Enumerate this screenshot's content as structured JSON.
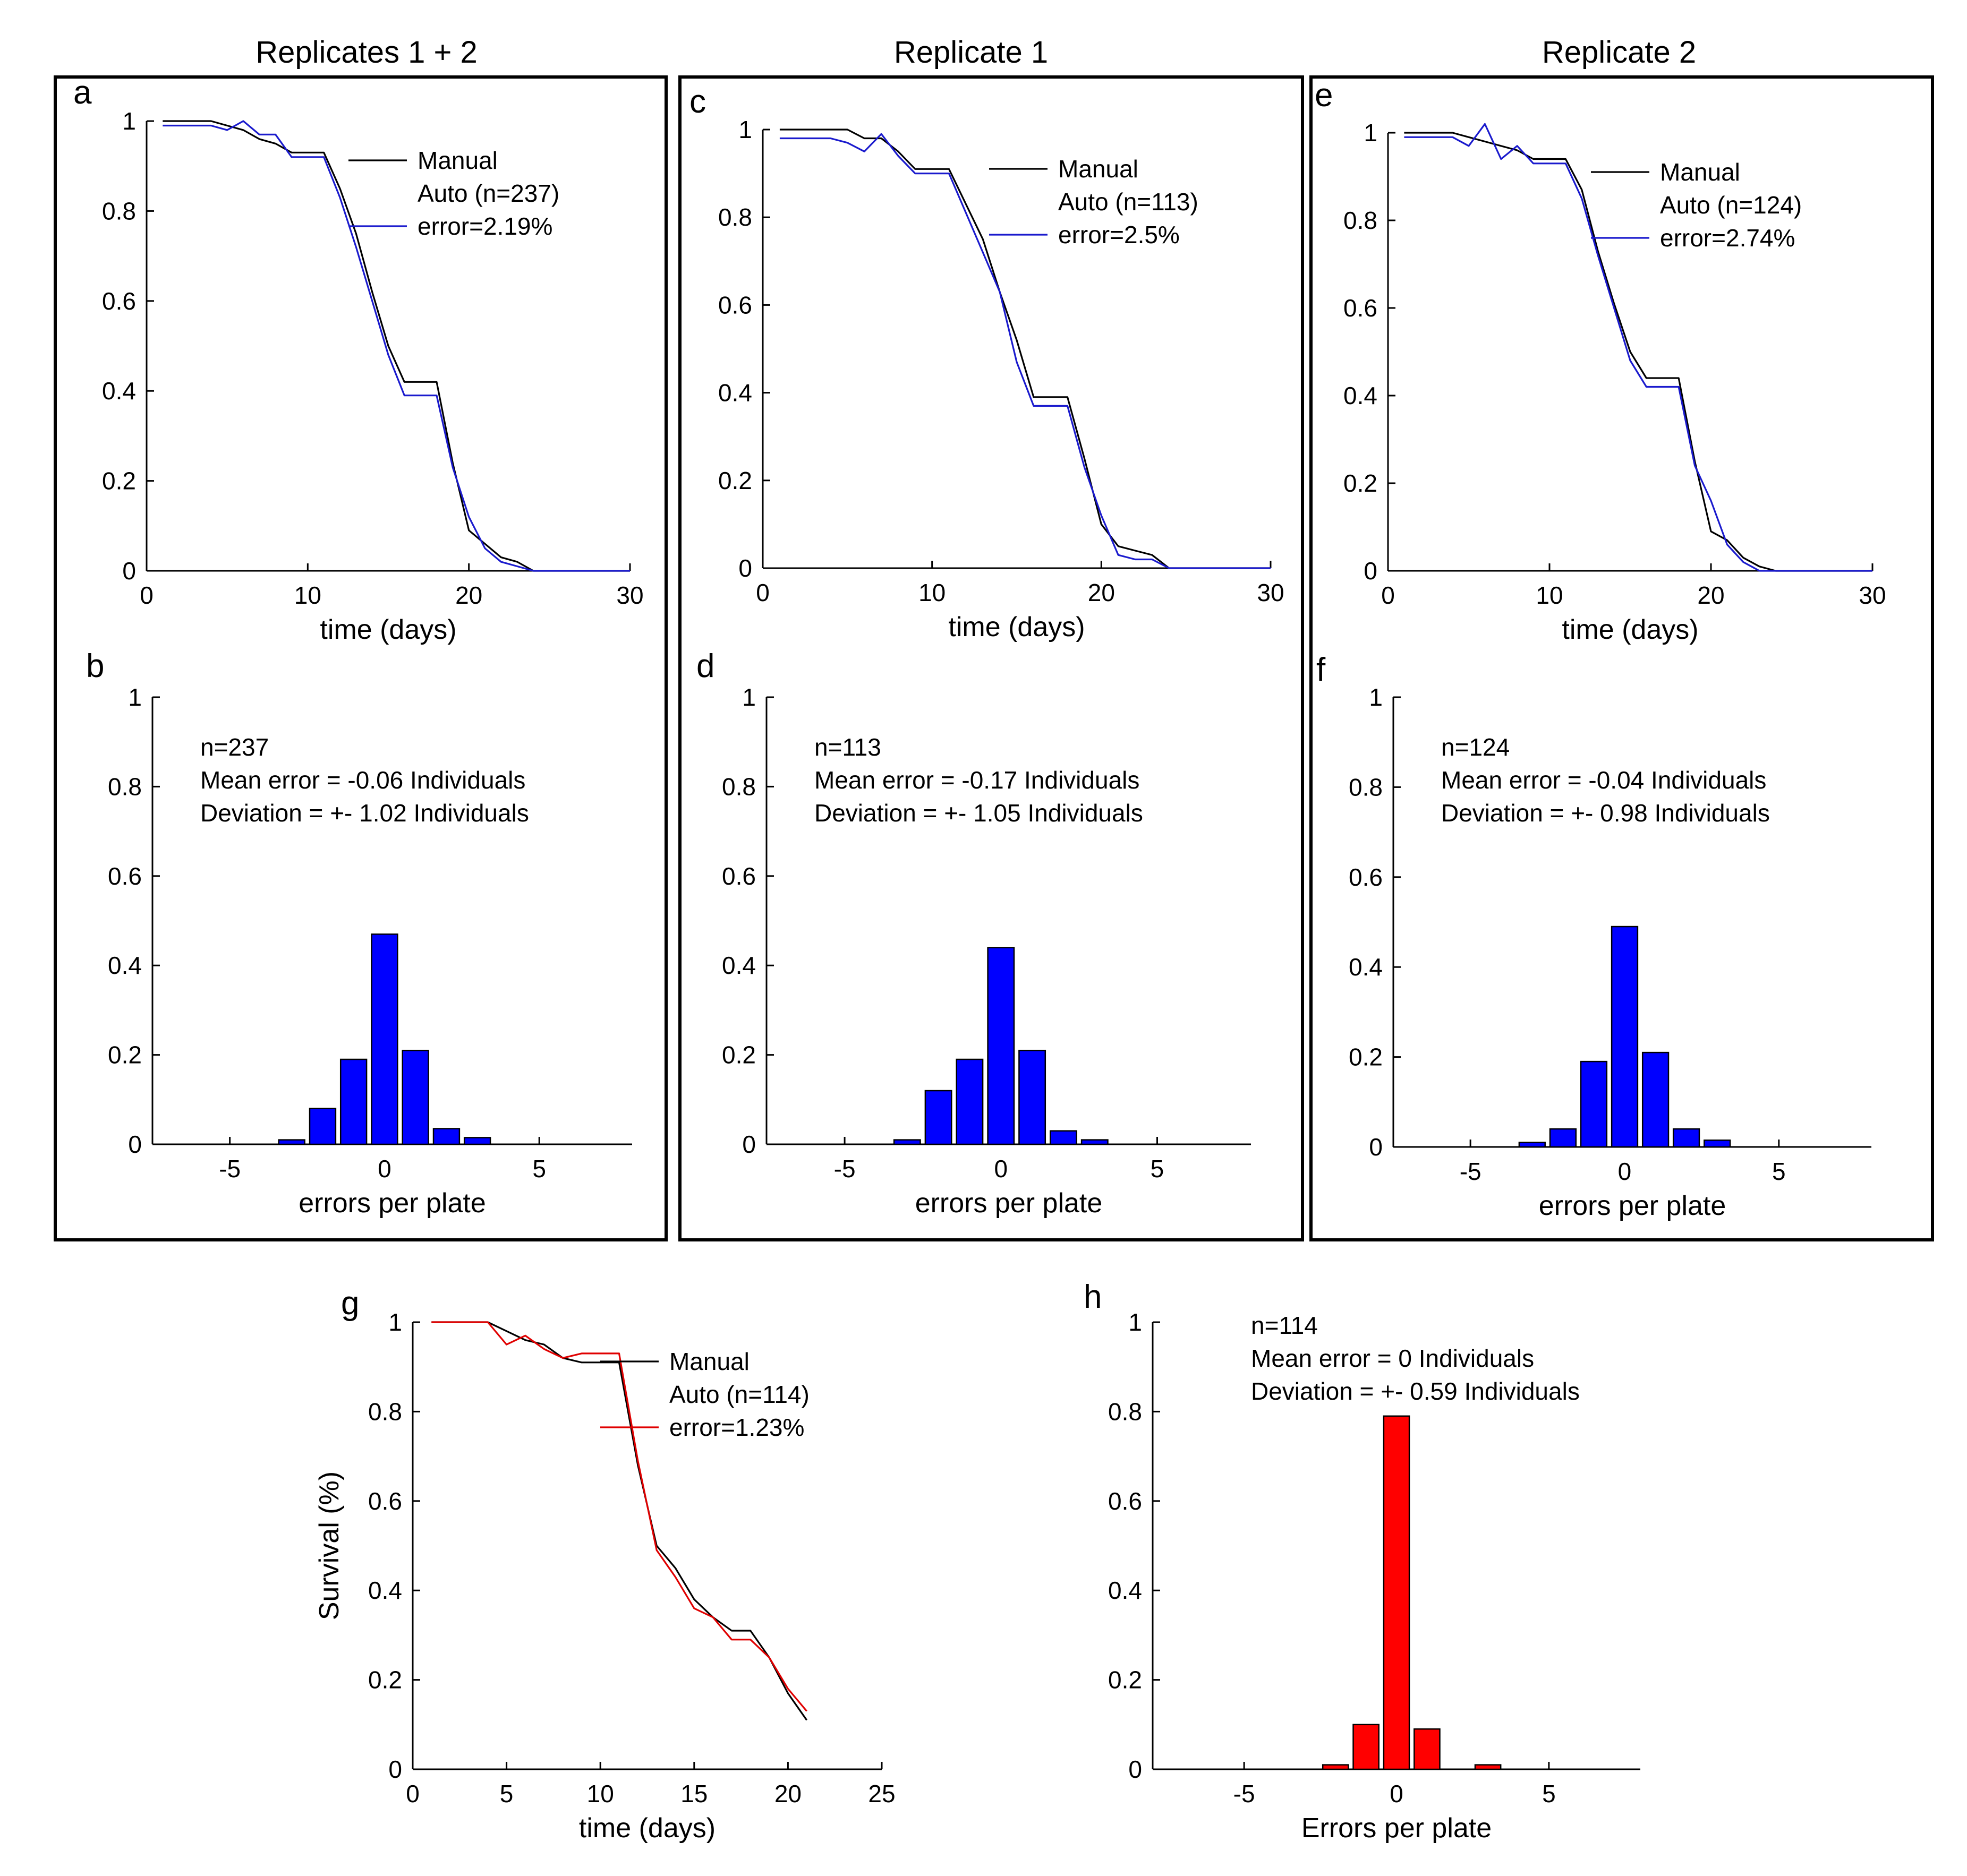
{
  "figure": {
    "columns": [
      {
        "heading": "Replicates 1 + 2"
      },
      {
        "heading": "Replicate 1"
      },
      {
        "heading": "Replicate 2"
      }
    ]
  },
  "chart_data": [
    {
      "id": "a",
      "type": "line",
      "panel_label": "a",
      "title": "",
      "xlabel": "time (days)",
      "ylabel": "",
      "xlim": [
        0,
        30
      ],
      "ylim": [
        0,
        1
      ],
      "xticks": [
        0,
        10,
        20,
        30
      ],
      "yticks": [
        0,
        0.2,
        0.4,
        0.6,
        0.8,
        1
      ],
      "xtick_labels": [
        "0",
        "10",
        "20",
        "30"
      ],
      "ytick_labels": [
        "0",
        "0.2",
        "0.4",
        "0.6",
        "0.8",
        "1"
      ],
      "legend": {
        "location": "top-right",
        "lines": [
          "Manual",
          "Auto (n=237)",
          "error=2.19%"
        ]
      },
      "series": [
        {
          "name": "Manual",
          "color": "#000000",
          "x": [
            1,
            2,
            3,
            4,
            5,
            6,
            7,
            8,
            9,
            10,
            11,
            12,
            13,
            14,
            15,
            16,
            17,
            18,
            19,
            20,
            21,
            22,
            23,
            24,
            25,
            26,
            27,
            28,
            29,
            30
          ],
          "values": [
            1,
            1,
            1,
            1,
            0.99,
            0.98,
            0.96,
            0.95,
            0.93,
            0.93,
            0.93,
            0.85,
            0.75,
            0.62,
            0.5,
            0.42,
            0.42,
            0.42,
            0.24,
            0.09,
            0.06,
            0.03,
            0.02,
            0,
            0,
            0,
            0,
            0,
            0,
            0
          ]
        },
        {
          "name": "Auto",
          "color": "#1a1acd",
          "x": [
            1,
            2,
            3,
            4,
            5,
            6,
            7,
            8,
            9,
            10,
            11,
            12,
            13,
            14,
            15,
            16,
            17,
            18,
            19,
            20,
            21,
            22,
            23,
            24,
            25,
            26,
            27,
            28,
            29,
            30
          ],
          "values": [
            0.99,
            0.99,
            0.99,
            0.99,
            0.98,
            1,
            0.97,
            0.97,
            0.92,
            0.92,
            0.92,
            0.83,
            0.72,
            0.6,
            0.48,
            0.39,
            0.39,
            0.39,
            0.23,
            0.12,
            0.05,
            0.02,
            0.01,
            0,
            0,
            0,
            0,
            0,
            0,
            0
          ]
        }
      ]
    },
    {
      "id": "b",
      "type": "bar",
      "panel_label": "b",
      "title": "",
      "xlabel": "errors per plate",
      "ylabel": "",
      "xlim": [
        -7.5,
        8
      ],
      "ylim": [
        0,
        1
      ],
      "xticks": [
        -5,
        0,
        5
      ],
      "yticks": [
        0,
        0.2,
        0.4,
        0.6,
        0.8,
        1
      ],
      "xtick_labels": [
        "-5",
        "0",
        "5"
      ],
      "ytick_labels": [
        "0",
        "0.2",
        "0.4",
        "0.6",
        "0.8",
        "1"
      ],
      "color": "#0000ff",
      "annotations": [
        "n=237",
        "Mean error = -0.06 Individuals",
        "Deviation = +- 1.02 Individuals"
      ],
      "categories": [
        -3,
        -2,
        -1,
        0,
        1,
        2,
        3
      ],
      "values": [
        0.01,
        0.08,
        0.19,
        0.47,
        0.21,
        0.035,
        0.015
      ]
    },
    {
      "id": "c",
      "type": "line",
      "panel_label": "c",
      "title": "",
      "xlabel": "time (days)",
      "ylabel": "",
      "xlim": [
        0,
        30
      ],
      "ylim": [
        0,
        1
      ],
      "xticks": [
        0,
        10,
        20,
        30
      ],
      "yticks": [
        0,
        0.2,
        0.4,
        0.6,
        0.8,
        1
      ],
      "xtick_labels": [
        "0",
        "10",
        "20",
        "30"
      ],
      "ytick_labels": [
        "0",
        "0.2",
        "0.4",
        "0.6",
        "0.8",
        "1"
      ],
      "legend": {
        "location": "top-right",
        "lines": [
          "Manual",
          "Auto (n=113)",
          "error=2.5%"
        ]
      },
      "series": [
        {
          "name": "Manual",
          "color": "#000000",
          "x": [
            1,
            2,
            3,
            4,
            5,
            6,
            7,
            8,
            9,
            10,
            11,
            12,
            13,
            14,
            15,
            16,
            17,
            18,
            19,
            20,
            21,
            22,
            23,
            24,
            25,
            26,
            27,
            28,
            29,
            30
          ],
          "values": [
            1,
            1,
            1,
            1,
            1,
            0.98,
            0.98,
            0.95,
            0.91,
            0.91,
            0.91,
            0.83,
            0.75,
            0.63,
            0.52,
            0.39,
            0.39,
            0.39,
            0.25,
            0.1,
            0.05,
            0.04,
            0.03,
            0,
            0,
            0,
            0,
            0,
            0,
            0
          ]
        },
        {
          "name": "Auto",
          "color": "#1a1acd",
          "x": [
            1,
            2,
            3,
            4,
            5,
            6,
            7,
            8,
            9,
            10,
            11,
            12,
            13,
            14,
            15,
            16,
            17,
            18,
            19,
            20,
            21,
            22,
            23,
            24,
            25,
            26,
            27,
            28,
            29,
            30
          ],
          "values": [
            0.98,
            0.98,
            0.98,
            0.98,
            0.97,
            0.95,
            0.99,
            0.94,
            0.9,
            0.9,
            0.9,
            0.81,
            0.72,
            0.63,
            0.47,
            0.37,
            0.37,
            0.37,
            0.23,
            0.12,
            0.03,
            0.02,
            0.02,
            0,
            0,
            0,
            0,
            0,
            0,
            0
          ]
        }
      ]
    },
    {
      "id": "d",
      "type": "bar",
      "panel_label": "d",
      "title": "",
      "xlabel": "errors per plate",
      "ylabel": "",
      "xlim": [
        -7.5,
        8
      ],
      "ylim": [
        0,
        1
      ],
      "xticks": [
        -5,
        0,
        5
      ],
      "yticks": [
        0,
        0.2,
        0.4,
        0.6,
        0.8,
        1
      ],
      "xtick_labels": [
        "-5",
        "0",
        "5"
      ],
      "ytick_labels": [
        "0",
        "0.2",
        "0.4",
        "0.6",
        "0.8",
        "1"
      ],
      "color": "#0000ff",
      "annotations": [
        "n=113",
        "Mean error = -0.17 Individuals",
        "Deviation = +- 1.05 Individuals"
      ],
      "categories": [
        -3,
        -2,
        -1,
        0,
        1,
        2,
        3
      ],
      "values": [
        0.01,
        0.12,
        0.19,
        0.44,
        0.21,
        0.03,
        0.01
      ]
    },
    {
      "id": "e",
      "type": "line",
      "panel_label": "e",
      "title": "",
      "xlabel": "time (days)",
      "ylabel": "",
      "xlim": [
        0,
        30
      ],
      "ylim": [
        0,
        1
      ],
      "xticks": [
        0,
        10,
        20,
        30
      ],
      "yticks": [
        0,
        0.2,
        0.4,
        0.6,
        0.8,
        1
      ],
      "xtick_labels": [
        "0",
        "10",
        "20",
        "30"
      ],
      "ytick_labels": [
        "0",
        "0.2",
        "0.4",
        "0.6",
        "0.8",
        "1"
      ],
      "legend": {
        "location": "top-right",
        "lines": [
          "Manual",
          "Auto (n=124)",
          "error=2.74%"
        ]
      },
      "series": [
        {
          "name": "Manual",
          "color": "#000000",
          "x": [
            1,
            2,
            3,
            4,
            5,
            6,
            7,
            8,
            9,
            10,
            11,
            12,
            13,
            14,
            15,
            16,
            17,
            18,
            19,
            20,
            21,
            22,
            23,
            24,
            25,
            26,
            27,
            28,
            29,
            30
          ],
          "values": [
            1,
            1,
            1,
            1,
            0.99,
            0.98,
            0.97,
            0.96,
            0.94,
            0.94,
            0.94,
            0.87,
            0.73,
            0.61,
            0.5,
            0.44,
            0.44,
            0.44,
            0.25,
            0.09,
            0.07,
            0.03,
            0.01,
            0,
            0,
            0,
            0,
            0,
            0,
            0
          ]
        },
        {
          "name": "Auto",
          "color": "#1a1acd",
          "x": [
            1,
            2,
            3,
            4,
            5,
            6,
            7,
            8,
            9,
            10,
            11,
            12,
            13,
            14,
            15,
            16,
            17,
            18,
            19,
            20,
            21,
            22,
            23,
            24,
            25,
            26,
            27,
            28,
            29,
            30
          ],
          "values": [
            0.99,
            0.99,
            0.99,
            0.99,
            0.97,
            1.02,
            0.94,
            0.97,
            0.93,
            0.93,
            0.93,
            0.85,
            0.72,
            0.6,
            0.48,
            0.42,
            0.42,
            0.42,
            0.24,
            0.16,
            0.06,
            0.02,
            0,
            0,
            0,
            0,
            0,
            0,
            0,
            0
          ]
        }
      ]
    },
    {
      "id": "f",
      "type": "bar",
      "panel_label": "f",
      "title": "",
      "xlabel": "errors per plate",
      "ylabel": "",
      "xlim": [
        -7.5,
        8
      ],
      "ylim": [
        0,
        1
      ],
      "xticks": [
        -5,
        0,
        5
      ],
      "yticks": [
        0,
        0.2,
        0.4,
        0.6,
        0.8,
        1
      ],
      "xtick_labels": [
        "-5",
        "0",
        "5"
      ],
      "ytick_labels": [
        "0",
        "0.2",
        "0.4",
        "0.6",
        "0.8",
        "1"
      ],
      "color": "#0000ff",
      "annotations": [
        "n=124",
        "Mean error = -0.04 Individuals",
        "Deviation = +- 0.98 Individuals"
      ],
      "categories": [
        -3,
        -2,
        -1,
        0,
        1,
        2,
        3
      ],
      "values": [
        0.01,
        0.04,
        0.19,
        0.49,
        0.21,
        0.04,
        0.015
      ]
    },
    {
      "id": "g",
      "type": "line",
      "panel_label": "g",
      "title": "",
      "xlabel": "time (days)",
      "ylabel": "Survival (%)",
      "xlim": [
        0,
        25
      ],
      "ylim": [
        0,
        1
      ],
      "xticks": [
        0,
        5,
        10,
        15,
        20,
        25
      ],
      "yticks": [
        0,
        0.2,
        0.4,
        0.6,
        0.8,
        1
      ],
      "xtick_labels": [
        "0",
        "5",
        "10",
        "15",
        "20",
        "25"
      ],
      "ytick_labels": [
        "0",
        "0.2",
        "0.4",
        "0.6",
        "0.8",
        "1"
      ],
      "legend": {
        "location": "top-right",
        "lines": [
          "Manual",
          "Auto (n=114)",
          "error=1.23%"
        ]
      },
      "series": [
        {
          "name": "Manual",
          "color": "#000000",
          "x": [
            1,
            2,
            3,
            4,
            5,
            6,
            7,
            8,
            9,
            10,
            11,
            12,
            13,
            14,
            15,
            16,
            17,
            18,
            19,
            20,
            21
          ],
          "values": [
            1,
            1,
            1,
            1,
            0.98,
            0.96,
            0.95,
            0.92,
            0.91,
            0.91,
            0.91,
            0.68,
            0.5,
            0.45,
            0.38,
            0.34,
            0.31,
            0.31,
            0.25,
            0.17,
            0.11
          ]
        },
        {
          "name": "Auto",
          "color": "#e00000",
          "x": [
            1,
            2,
            3,
            4,
            5,
            6,
            7,
            8,
            9,
            10,
            11,
            12,
            13,
            14,
            15,
            16,
            17,
            18,
            19,
            20,
            21
          ],
          "values": [
            1,
            1,
            1,
            1,
            0.95,
            0.97,
            0.94,
            0.92,
            0.93,
            0.93,
            0.93,
            0.69,
            0.49,
            0.43,
            0.36,
            0.34,
            0.29,
            0.29,
            0.25,
            0.18,
            0.13
          ]
        }
      ]
    },
    {
      "id": "h",
      "type": "bar",
      "panel_label": "h",
      "title": "",
      "xlabel": "Errors per plate",
      "ylabel": "",
      "xlim": [
        -8,
        8
      ],
      "ylim": [
        0,
        1
      ],
      "xticks": [
        -5,
        0,
        5
      ],
      "yticks": [
        0,
        0.2,
        0.4,
        0.6,
        0.8,
        1
      ],
      "xtick_labels": [
        "-5",
        "0",
        "5"
      ],
      "ytick_labels": [
        "0",
        "0.2",
        "0.4",
        "0.6",
        "0.8",
        "1"
      ],
      "color": "#ff0000",
      "annotations": [
        "n=114",
        "Mean error =   0 Individuals",
        "Deviation = +- 0.59 Individuals"
      ],
      "categories": [
        -2,
        -1,
        0,
        1,
        3
      ],
      "values": [
        0.01,
        0.1,
        0.79,
        0.09,
        0.01
      ]
    }
  ]
}
